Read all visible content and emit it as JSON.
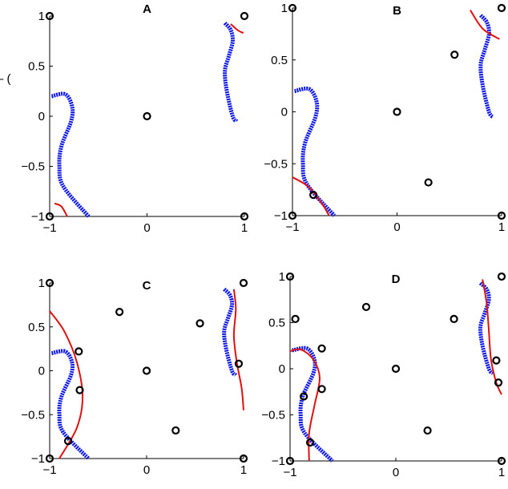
{
  "clipped_text": "– (",
  "colors": {
    "target": "#0a14e6",
    "estimate": "#e01010",
    "points": "#000000"
  },
  "chart_data": [
    {
      "type": "scatter",
      "title": "A",
      "xlim": [
        -1,
        1
      ],
      "ylim": [
        -1,
        1
      ],
      "xticks": [
        -1,
        0,
        1
      ],
      "yticks": [
        -1,
        -0.5,
        0,
        0.5,
        1
      ],
      "xticklabels": [
        "−1",
        "0",
        "1"
      ],
      "yticklabels": [
        "−1",
        "−0.5",
        "0",
        "0.5",
        "1"
      ],
      "points": [
        [
          -1,
          1
        ],
        [
          1,
          1
        ],
        [
          0,
          0
        ],
        [
          -1,
          -1
        ],
        [
          1,
          -1
        ]
      ],
      "target_curves": [
        [
          [
            -0.98,
            0.2
          ],
          [
            -0.84,
            0.22
          ],
          [
            -0.77,
            0.1
          ],
          [
            -0.78,
            -0.05
          ],
          [
            -0.88,
            -0.3
          ],
          [
            -0.9,
            -0.5
          ],
          [
            -0.86,
            -0.7
          ],
          [
            -0.6,
            -1
          ]
        ],
        [
          [
            0.8,
            0.93
          ],
          [
            0.86,
            0.86
          ],
          [
            0.88,
            0.75
          ],
          [
            0.84,
            0.6
          ],
          [
            0.8,
            0.45
          ],
          [
            0.82,
            0.25
          ],
          [
            0.88,
            0
          ],
          [
            0.92,
            -0.05
          ]
        ]
      ],
      "estimate_curves": [
        [
          [
            -0.95,
            -0.87
          ],
          [
            -0.88,
            -0.9
          ],
          [
            -0.82,
            -1
          ]
        ],
        [
          [
            0.86,
            0.92
          ],
          [
            0.93,
            0.86
          ],
          [
            0.99,
            0.83
          ]
        ]
      ],
      "grid": false
    },
    {
      "type": "scatter",
      "title": "B",
      "xlim": [
        -1,
        1
      ],
      "ylim": [
        -1,
        1
      ],
      "xticks": [
        -1,
        0,
        1
      ],
      "yticks": [
        -1,
        -0.5,
        0,
        0.5,
        1
      ],
      "xticklabels": [
        "−1",
        "0",
        "1"
      ],
      "yticklabels": [
        "−1",
        "−0.5",
        "0",
        "0.5",
        "1"
      ],
      "points": [
        [
          -1,
          1
        ],
        [
          1,
          1
        ],
        [
          0.55,
          0.55
        ],
        [
          0,
          0
        ],
        [
          0.3,
          -0.68
        ],
        [
          -0.8,
          -0.8
        ],
        [
          -1,
          -1
        ],
        [
          1,
          -1
        ]
      ],
      "target_curves": [
        [
          [
            -0.98,
            0.2
          ],
          [
            -0.84,
            0.22
          ],
          [
            -0.77,
            0.1
          ],
          [
            -0.78,
            -0.05
          ],
          [
            -0.88,
            -0.3
          ],
          [
            -0.9,
            -0.5
          ],
          [
            -0.86,
            -0.7
          ],
          [
            -0.6,
            -1
          ]
        ],
        [
          [
            0.8,
            0.93
          ],
          [
            0.86,
            0.86
          ],
          [
            0.88,
            0.75
          ],
          [
            0.84,
            0.6
          ],
          [
            0.8,
            0.45
          ],
          [
            0.82,
            0.25
          ],
          [
            0.88,
            0
          ],
          [
            0.92,
            -0.05
          ]
        ]
      ],
      "estimate_curves": [
        [
          [
            -1,
            -0.63
          ],
          [
            -0.85,
            -0.72
          ],
          [
            -0.72,
            -0.88
          ],
          [
            -0.65,
            -1
          ]
        ],
        [
          [
            0.7,
            0.98
          ],
          [
            0.82,
            0.8
          ],
          [
            0.98,
            0.7
          ]
        ]
      ],
      "grid": false
    },
    {
      "type": "scatter",
      "title": "C",
      "xlim": [
        -1,
        1
      ],
      "ylim": [
        -1,
        1
      ],
      "xticks": [
        -1,
        0,
        1
      ],
      "yticks": [
        -1,
        -0.5,
        0,
        0.5,
        1
      ],
      "xticklabels": [
        "−1",
        "0",
        "1"
      ],
      "yticklabels": [
        "−1",
        "−0.5",
        "0",
        "0.5",
        "1"
      ],
      "points": [
        [
          -1,
          1
        ],
        [
          1,
          1
        ],
        [
          -0.28,
          0.67
        ],
        [
          0.55,
          0.54
        ],
        [
          -0.7,
          0.22
        ],
        [
          0,
          0
        ],
        [
          0.95,
          0.08
        ],
        [
          -0.69,
          -0.22
        ],
        [
          0.3,
          -0.68
        ],
        [
          -0.81,
          -0.8
        ],
        [
          -1,
          -1
        ],
        [
          1,
          -1
        ]
      ],
      "target_curves": [
        [
          [
            -0.98,
            0.2
          ],
          [
            -0.84,
            0.22
          ],
          [
            -0.77,
            0.1
          ],
          [
            -0.78,
            -0.05
          ],
          [
            -0.88,
            -0.3
          ],
          [
            -0.9,
            -0.5
          ],
          [
            -0.86,
            -0.7
          ],
          [
            -0.6,
            -1
          ]
        ],
        [
          [
            0.8,
            0.93
          ],
          [
            0.86,
            0.86
          ],
          [
            0.88,
            0.75
          ],
          [
            0.84,
            0.6
          ],
          [
            0.8,
            0.45
          ],
          [
            0.82,
            0.25
          ],
          [
            0.88,
            0
          ],
          [
            0.92,
            -0.05
          ]
        ]
      ],
      "estimate_curves": [
        [
          [
            -1,
            0.68
          ],
          [
            -0.85,
            0.45
          ],
          [
            -0.72,
            0.1
          ],
          [
            -0.66,
            -0.3
          ],
          [
            -0.72,
            -0.65
          ],
          [
            -0.9,
            -1
          ]
        ],
        [
          [
            0.9,
            0.93
          ],
          [
            0.92,
            0.7
          ],
          [
            0.9,
            0.4
          ],
          [
            0.93,
            0.1
          ],
          [
            0.98,
            -0.2
          ],
          [
            1,
            -0.45
          ]
        ]
      ],
      "grid": false
    },
    {
      "type": "scatter",
      "title": "D",
      "xlim": [
        -1,
        1
      ],
      "ylim": [
        -1,
        1
      ],
      "xticks": [
        -1,
        0,
        1
      ],
      "yticks": [
        -1,
        -0.5,
        0,
        0.5,
        1
      ],
      "xticklabels": [
        "−1",
        "0",
        "1"
      ],
      "yticklabels": [
        "−1",
        "−0.5",
        "0",
        "0.5",
        "1"
      ],
      "points": [
        [
          -1,
          1
        ],
        [
          1,
          1
        ],
        [
          -0.28,
          0.67
        ],
        [
          -0.95,
          0.54
        ],
        [
          0.55,
          0.54
        ],
        [
          -0.7,
          0.22
        ],
        [
          0,
          0
        ],
        [
          0.95,
          0.09
        ],
        [
          -0.7,
          -0.22
        ],
        [
          -0.87,
          -0.3
        ],
        [
          0.97,
          -0.15
        ],
        [
          0.3,
          -0.67
        ],
        [
          -0.81,
          -0.8
        ],
        [
          -1,
          -1
        ],
        [
          1,
          -1
        ]
      ],
      "target_curves": [
        [
          [
            -0.98,
            0.2
          ],
          [
            -0.84,
            0.22
          ],
          [
            -0.77,
            0.1
          ],
          [
            -0.78,
            -0.05
          ],
          [
            -0.88,
            -0.3
          ],
          [
            -0.9,
            -0.5
          ],
          [
            -0.86,
            -0.7
          ],
          [
            -0.6,
            -1
          ]
        ],
        [
          [
            0.8,
            0.93
          ],
          [
            0.86,
            0.86
          ],
          [
            0.88,
            0.75
          ],
          [
            0.84,
            0.6
          ],
          [
            0.8,
            0.45
          ],
          [
            0.82,
            0.25
          ],
          [
            0.88,
            0
          ],
          [
            0.92,
            -0.05
          ]
        ]
      ],
      "estimate_curves": [
        [
          [
            -1,
            0.19
          ],
          [
            -0.9,
            0.21
          ],
          [
            -0.78,
            0.1
          ],
          [
            -0.72,
            -0.1
          ],
          [
            -0.77,
            -0.4
          ],
          [
            -0.82,
            -0.7
          ],
          [
            -0.82,
            -1
          ]
        ],
        [
          [
            0.82,
            0.97
          ],
          [
            0.86,
            0.7
          ],
          [
            0.88,
            0.4
          ],
          [
            0.9,
            0.1
          ],
          [
            0.95,
            -0.15
          ],
          [
            1,
            -0.28
          ]
        ]
      ],
      "grid": false
    }
  ]
}
